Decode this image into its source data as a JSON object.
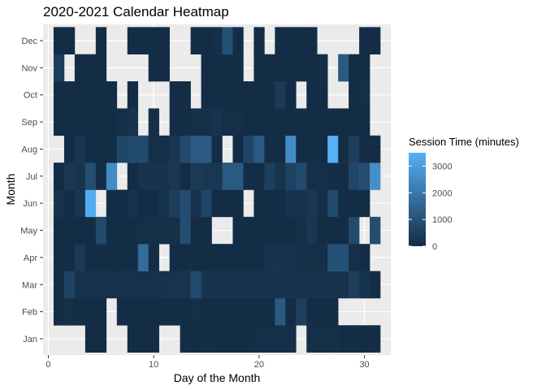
{
  "chart_data": {
    "type": "heatmap",
    "title": "2020-2021 Calendar Heatmap",
    "xlabel": "Day of the Month",
    "ylabel": "Month",
    "xlim": [
      -0.5,
      32.5
    ],
    "x_ticks": [
      0,
      10,
      20,
      30
    ],
    "y_categories": [
      "Jan",
      "Feb",
      "Mar",
      "Apr",
      "May",
      "Jun",
      "Jul",
      "Aug",
      "Sep",
      "Oct",
      "Nov",
      "Dec"
    ],
    "legend": {
      "title": "Session Time (minutes)",
      "ticks": [
        0,
        1000,
        2000,
        3000
      ],
      "range": [
        0,
        3500
      ],
      "low_color": "#132B43",
      "high_color": "#56B1F7",
      "position": "right"
    },
    "panel_background": "#EBEBEB",
    "grid": true,
    "value_estimates_note": "",
    "rows": {
      "Jan": [
        [
          4,
          50
        ],
        [
          5,
          50
        ],
        [
          8,
          50
        ],
        [
          9,
          50
        ],
        [
          10,
          50
        ],
        [
          13,
          50
        ],
        [
          14,
          50
        ],
        [
          15,
          50
        ],
        [
          16,
          50
        ],
        [
          17,
          50
        ],
        [
          18,
          50
        ],
        [
          19,
          50
        ],
        [
          20,
          100
        ],
        [
          21,
          100
        ],
        [
          22,
          100
        ],
        [
          23,
          100
        ],
        [
          25,
          100
        ],
        [
          26,
          100
        ],
        [
          27,
          100
        ],
        [
          28,
          50
        ],
        [
          29,
          50
        ],
        [
          30,
          50
        ],
        [
          31,
          50
        ]
      ],
      "Feb": [
        [
          1,
          50
        ],
        [
          2,
          100
        ],
        [
          3,
          50
        ],
        [
          4,
          50
        ],
        [
          5,
          50
        ],
        [
          7,
          50
        ],
        [
          8,
          50
        ],
        [
          9,
          50
        ],
        [
          10,
          50
        ],
        [
          11,
          50
        ],
        [
          12,
          50
        ],
        [
          13,
          50
        ],
        [
          14,
          100
        ],
        [
          15,
          50
        ],
        [
          16,
          50
        ],
        [
          17,
          50
        ],
        [
          18,
          50
        ],
        [
          19,
          50
        ],
        [
          20,
          50
        ],
        [
          21,
          50
        ],
        [
          22,
          1200
        ],
        [
          23,
          50
        ],
        [
          24,
          500
        ],
        [
          25,
          50
        ],
        [
          26,
          50
        ],
        [
          27,
          50
        ]
      ],
      "Mar": [
        [
          1,
          50
        ],
        [
          2,
          600
        ],
        [
          3,
          150
        ],
        [
          4,
          150
        ],
        [
          5,
          150
        ],
        [
          6,
          150
        ],
        [
          7,
          150
        ],
        [
          8,
          150
        ],
        [
          9,
          150
        ],
        [
          10,
          150
        ],
        [
          11,
          200
        ],
        [
          12,
          200
        ],
        [
          13,
          200
        ],
        [
          14,
          800
        ],
        [
          15,
          200
        ],
        [
          16,
          200
        ],
        [
          17,
          200
        ],
        [
          18,
          200
        ],
        [
          19,
          200
        ],
        [
          20,
          200
        ],
        [
          21,
          200
        ],
        [
          22,
          200
        ],
        [
          23,
          200
        ],
        [
          24,
          200
        ],
        [
          25,
          200
        ],
        [
          26,
          200
        ],
        [
          27,
          200
        ],
        [
          28,
          200
        ],
        [
          29,
          500
        ],
        [
          30,
          200
        ],
        [
          31,
          50
        ]
      ],
      "Apr": [
        [
          1,
          50
        ],
        [
          2,
          50
        ],
        [
          3,
          400
        ],
        [
          4,
          50
        ],
        [
          5,
          50
        ],
        [
          6,
          50
        ],
        [
          7,
          50
        ],
        [
          8,
          50
        ],
        [
          9,
          1700
        ],
        [
          10,
          50
        ],
        [
          12,
          50
        ],
        [
          13,
          50
        ],
        [
          14,
          50
        ],
        [
          15,
          50
        ],
        [
          16,
          50
        ],
        [
          17,
          50
        ],
        [
          18,
          50
        ],
        [
          19,
          50
        ],
        [
          20,
          50
        ],
        [
          21,
          200
        ],
        [
          22,
          200
        ],
        [
          23,
          200
        ],
        [
          24,
          100
        ],
        [
          25,
          100
        ],
        [
          26,
          100
        ],
        [
          27,
          1000
        ],
        [
          28,
          1000
        ],
        [
          29,
          100
        ],
        [
          30,
          50
        ]
      ],
      "May": [
        [
          1,
          50
        ],
        [
          2,
          50
        ],
        [
          3,
          50
        ],
        [
          4,
          50
        ],
        [
          5,
          800
        ],
        [
          6,
          50
        ],
        [
          7,
          50
        ],
        [
          8,
          50
        ],
        [
          9,
          100
        ],
        [
          10,
          100
        ],
        [
          11,
          100
        ],
        [
          12,
          100
        ],
        [
          13,
          900
        ],
        [
          14,
          50
        ],
        [
          15,
          50
        ],
        [
          18,
          50
        ],
        [
          19,
          50
        ],
        [
          20,
          50
        ],
        [
          21,
          50
        ],
        [
          22,
          50
        ],
        [
          23,
          50
        ],
        [
          24,
          100
        ],
        [
          25,
          300
        ],
        [
          26,
          50
        ],
        [
          27,
          50
        ],
        [
          28,
          50
        ],
        [
          29,
          800
        ],
        [
          31,
          900
        ]
      ],
      "Jun": [
        [
          1,
          200
        ],
        [
          2,
          50
        ],
        [
          3,
          300
        ],
        [
          4,
          3400
        ],
        [
          6,
          50
        ],
        [
          7,
          50
        ],
        [
          8,
          200
        ],
        [
          9,
          50
        ],
        [
          10,
          50
        ],
        [
          11,
          200
        ],
        [
          12,
          500
        ],
        [
          13,
          900
        ],
        [
          14,
          200
        ],
        [
          15,
          700
        ],
        [
          16,
          50
        ],
        [
          17,
          50
        ],
        [
          18,
          50
        ],
        [
          20,
          50
        ],
        [
          21,
          50
        ],
        [
          22,
          50
        ],
        [
          23,
          200
        ],
        [
          24,
          200
        ],
        [
          25,
          300
        ],
        [
          26,
          100
        ],
        [
          27,
          800
        ],
        [
          28,
          50
        ],
        [
          29,
          50
        ],
        [
          30,
          50
        ]
      ],
      "Jul": [
        [
          1,
          50
        ],
        [
          2,
          300
        ],
        [
          3,
          200
        ],
        [
          4,
          900
        ],
        [
          5,
          50
        ],
        [
          6,
          2500
        ],
        [
          8,
          50
        ],
        [
          9,
          200
        ],
        [
          10,
          200
        ],
        [
          11,
          200
        ],
        [
          12,
          300
        ],
        [
          13,
          50
        ],
        [
          14,
          400
        ],
        [
          15,
          300
        ],
        [
          16,
          300
        ],
        [
          17,
          1200
        ],
        [
          18,
          1200
        ],
        [
          19,
          50
        ],
        [
          20,
          50
        ],
        [
          21,
          500
        ],
        [
          22,
          200
        ],
        [
          23,
          600
        ],
        [
          24,
          800
        ],
        [
          25,
          100
        ],
        [
          26,
          100
        ],
        [
          27,
          50
        ],
        [
          28,
          50
        ],
        [
          29,
          700
        ],
        [
          30,
          900
        ],
        [
          31,
          2600
        ]
      ],
      "Aug": [
        [
          2,
          50
        ],
        [
          3,
          300
        ],
        [
          4,
          50
        ],
        [
          5,
          50
        ],
        [
          6,
          50
        ],
        [
          7,
          700
        ],
        [
          8,
          800
        ],
        [
          9,
          800
        ],
        [
          10,
          100
        ],
        [
          11,
          100
        ],
        [
          12,
          300
        ],
        [
          13,
          800
        ],
        [
          14,
          1200
        ],
        [
          15,
          1200
        ],
        [
          16,
          50
        ],
        [
          18,
          50
        ],
        [
          19,
          700
        ],
        [
          20,
          1200
        ],
        [
          21,
          50
        ],
        [
          22,
          50
        ],
        [
          23,
          2500
        ],
        [
          24,
          50
        ],
        [
          25,
          50
        ],
        [
          26,
          50
        ],
        [
          27,
          3500
        ],
        [
          28,
          50
        ],
        [
          29,
          500
        ],
        [
          30,
          50
        ],
        [
          31,
          50
        ]
      ],
      "Sep": [
        [
          1,
          50
        ],
        [
          2,
          50
        ],
        [
          3,
          50
        ],
        [
          4,
          50
        ],
        [
          5,
          50
        ],
        [
          6,
          50
        ],
        [
          7,
          100
        ],
        [
          8,
          200
        ],
        [
          10,
          100
        ],
        [
          12,
          50
        ],
        [
          13,
          50
        ],
        [
          14,
          100
        ],
        [
          15,
          100
        ],
        [
          16,
          200
        ],
        [
          17,
          100
        ],
        [
          18,
          100
        ],
        [
          19,
          50
        ],
        [
          20,
          50
        ],
        [
          21,
          50
        ],
        [
          22,
          50
        ],
        [
          23,
          50
        ],
        [
          24,
          50
        ],
        [
          25,
          50
        ],
        [
          26,
          50
        ],
        [
          27,
          50
        ],
        [
          28,
          50
        ],
        [
          29,
          50
        ],
        [
          30,
          50
        ]
      ],
      "Oct": [
        [
          1,
          50
        ],
        [
          2,
          50
        ],
        [
          3,
          50
        ],
        [
          4,
          50
        ],
        [
          5,
          50
        ],
        [
          6,
          50
        ],
        [
          8,
          50
        ],
        [
          12,
          50
        ],
        [
          13,
          50
        ],
        [
          15,
          50
        ],
        [
          16,
          50
        ],
        [
          17,
          50
        ],
        [
          18,
          50
        ],
        [
          19,
          50
        ],
        [
          20,
          50
        ],
        [
          21,
          50
        ],
        [
          22,
          400
        ],
        [
          23,
          50
        ],
        [
          25,
          50
        ],
        [
          26,
          50
        ],
        [
          29,
          50
        ],
        [
          30,
          100
        ]
      ],
      "Nov": [
        [
          1,
          500
        ],
        [
          3,
          50
        ],
        [
          4,
          50
        ],
        [
          5,
          50
        ],
        [
          10,
          50
        ],
        [
          11,
          50
        ],
        [
          15,
          50
        ],
        [
          16,
          50
        ],
        [
          17,
          50
        ],
        [
          18,
          50
        ],
        [
          20,
          50
        ],
        [
          21,
          50
        ],
        [
          22,
          50
        ],
        [
          23,
          50
        ],
        [
          24,
          50
        ],
        [
          25,
          50
        ],
        [
          26,
          100
        ],
        [
          28,
          1200
        ],
        [
          29,
          50
        ],
        [
          30,
          50
        ]
      ],
      "Dec": [
        [
          1,
          50
        ],
        [
          2,
          50
        ],
        [
          5,
          50
        ],
        [
          8,
          50
        ],
        [
          9,
          50
        ],
        [
          10,
          50
        ],
        [
          11,
          50
        ],
        [
          14,
          50
        ],
        [
          15,
          50
        ],
        [
          16,
          100
        ],
        [
          17,
          1000
        ],
        [
          18,
          50
        ],
        [
          20,
          50
        ],
        [
          22,
          50
        ],
        [
          23,
          50
        ],
        [
          24,
          50
        ],
        [
          25,
          50
        ],
        [
          30,
          50
        ],
        [
          31,
          50
        ]
      ]
    }
  }
}
